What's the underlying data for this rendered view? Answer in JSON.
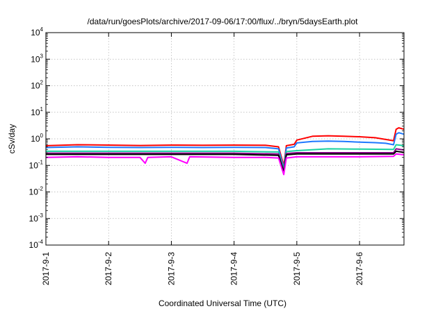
{
  "chart_data": {
    "type": "line",
    "title": "/data/run/goesPlots/archive/2017-09-06/17:00/flux/../bryn/5daysEarth.plot",
    "xlabel": "Coordinated Universal Time (UTC)",
    "ylabel": "cSv/day",
    "yscale": "log",
    "ylim": [
      0.0001,
      10000
    ],
    "yticks": [
      {
        "base": "10",
        "exp": "-4"
      },
      {
        "base": "10",
        "exp": "-3"
      },
      {
        "base": "10",
        "exp": "-2"
      },
      {
        "base": "10",
        "exp": "-1"
      },
      {
        "base": "10",
        "exp": "0"
      },
      {
        "base": "10",
        "exp": "1"
      },
      {
        "base": "10",
        "exp": "2"
      },
      {
        "base": "10",
        "exp": "3"
      },
      {
        "base": "10",
        "exp": "4"
      }
    ],
    "xlim": [
      "2017-09-01T00:00",
      "2017-09-06T17:00"
    ],
    "xticks": [
      "2017-9-1",
      "2017-9-2",
      "2017-9-3",
      "2017-9-4",
      "2017-9-5",
      "2017-9-6"
    ],
    "grid": true,
    "legend": "none",
    "series": [
      {
        "color": "#ff0000",
        "points": [
          [
            "2017-09-01T00:00",
            0.55
          ],
          [
            "2017-09-01T12:00",
            0.6
          ],
          [
            "2017-09-02T00:00",
            0.58
          ],
          [
            "2017-09-02T12:00",
            0.56
          ],
          [
            "2017-09-03T00:00",
            0.58
          ],
          [
            "2017-09-03T12:00",
            0.57
          ],
          [
            "2017-09-04T00:00",
            0.58
          ],
          [
            "2017-09-04T12:00",
            0.57
          ],
          [
            "2017-09-04T17:00",
            0.5
          ],
          [
            "2017-09-04T19:00",
            0.1
          ],
          [
            "2017-09-04T20:00",
            0.55
          ],
          [
            "2017-09-04T23:00",
            0.62
          ],
          [
            "2017-09-05T00:00",
            0.9
          ],
          [
            "2017-09-05T06:00",
            1.25
          ],
          [
            "2017-09-05T12:00",
            1.3
          ],
          [
            "2017-09-05T18:00",
            1.25
          ],
          [
            "2017-09-06T00:00",
            1.2
          ],
          [
            "2017-09-06T06:00",
            1.1
          ],
          [
            "2017-09-06T10:00",
            0.95
          ],
          [
            "2017-09-06T13:00",
            0.85
          ],
          [
            "2017-09-06T14:00",
            2.3
          ],
          [
            "2017-09-06T15:00",
            2.6
          ],
          [
            "2017-09-06T17:00",
            2.3
          ]
        ]
      },
      {
        "color": "#1e78ff",
        "points": [
          [
            "2017-09-01T00:00",
            0.47
          ],
          [
            "2017-09-01T12:00",
            0.5
          ],
          [
            "2017-09-02T00:00",
            0.48
          ],
          [
            "2017-09-02T12:00",
            0.47
          ],
          [
            "2017-09-03T00:00",
            0.48
          ],
          [
            "2017-09-03T12:00",
            0.47
          ],
          [
            "2017-09-04T00:00",
            0.48
          ],
          [
            "2017-09-04T12:00",
            0.47
          ],
          [
            "2017-09-04T17:00",
            0.42
          ],
          [
            "2017-09-04T19:00",
            0.08
          ],
          [
            "2017-09-04T20:00",
            0.45
          ],
          [
            "2017-09-04T23:00",
            0.5
          ],
          [
            "2017-09-05T00:00",
            0.7
          ],
          [
            "2017-09-05T06:00",
            0.8
          ],
          [
            "2017-09-05T12:00",
            0.82
          ],
          [
            "2017-09-05T18:00",
            0.8
          ],
          [
            "2017-09-06T00:00",
            0.75
          ],
          [
            "2017-09-06T06:00",
            0.72
          ],
          [
            "2017-09-06T10:00",
            0.68
          ],
          [
            "2017-09-06T13:00",
            0.6
          ],
          [
            "2017-09-06T14:00",
            1.5
          ],
          [
            "2017-09-06T15:00",
            1.7
          ],
          [
            "2017-09-06T17:00",
            1.5
          ]
        ]
      },
      {
        "color": "#19d2a0",
        "points": [
          [
            "2017-09-01T00:00",
            0.34
          ],
          [
            "2017-09-02T00:00",
            0.34
          ],
          [
            "2017-09-03T00:00",
            0.34
          ],
          [
            "2017-09-04T00:00",
            0.34
          ],
          [
            "2017-09-04T17:00",
            0.32
          ],
          [
            "2017-09-04T19:00",
            0.07
          ],
          [
            "2017-09-04T20:00",
            0.33
          ],
          [
            "2017-09-05T00:00",
            0.36
          ],
          [
            "2017-09-05T12:00",
            0.42
          ],
          [
            "2017-09-06T00:00",
            0.41
          ],
          [
            "2017-09-06T13:00",
            0.4
          ],
          [
            "2017-09-06T14:00",
            0.6
          ],
          [
            "2017-09-06T17:00",
            0.55
          ]
        ]
      },
      {
        "color": "#8c008c",
        "points": [
          [
            "2017-09-01T00:00",
            0.29
          ],
          [
            "2017-09-02T00:00",
            0.29
          ],
          [
            "2017-09-03T00:00",
            0.29
          ],
          [
            "2017-09-04T00:00",
            0.29
          ],
          [
            "2017-09-04T17:00",
            0.27
          ],
          [
            "2017-09-04T19:00",
            0.06
          ],
          [
            "2017-09-04T20:00",
            0.28
          ],
          [
            "2017-09-05T00:00",
            0.3
          ],
          [
            "2017-09-06T00:00",
            0.3
          ],
          [
            "2017-09-06T13:00",
            0.3
          ],
          [
            "2017-09-06T14:00",
            0.42
          ],
          [
            "2017-09-06T17:00",
            0.38
          ]
        ]
      },
      {
        "color": "#000000",
        "points": [
          [
            "2017-09-01T00:00",
            0.26
          ],
          [
            "2017-09-02T00:00",
            0.26
          ],
          [
            "2017-09-03T00:00",
            0.26
          ],
          [
            "2017-09-04T00:00",
            0.26
          ],
          [
            "2017-09-04T17:00",
            0.24
          ],
          [
            "2017-09-04T19:00",
            0.055
          ],
          [
            "2017-09-04T20:00",
            0.25
          ],
          [
            "2017-09-05T00:00",
            0.27
          ],
          [
            "2017-09-06T00:00",
            0.27
          ],
          [
            "2017-09-06T13:00",
            0.27
          ],
          [
            "2017-09-06T14:00",
            0.34
          ],
          [
            "2017-09-06T17:00",
            0.31
          ]
        ]
      },
      {
        "color": "#ff00ff",
        "points": [
          [
            "2017-09-01T00:00",
            0.2
          ],
          [
            "2017-09-01T12:00",
            0.21
          ],
          [
            "2017-09-02T00:00",
            0.2
          ],
          [
            "2017-09-02T12:00",
            0.2
          ],
          [
            "2017-09-02T14:00",
            0.12
          ],
          [
            "2017-09-02T15:00",
            0.2
          ],
          [
            "2017-09-03T00:00",
            0.21
          ],
          [
            "2017-09-03T06:00",
            0.12
          ],
          [
            "2017-09-03T07:00",
            0.21
          ],
          [
            "2017-09-04T00:00",
            0.2
          ],
          [
            "2017-09-04T12:00",
            0.2
          ],
          [
            "2017-09-04T17:00",
            0.19
          ],
          [
            "2017-09-04T19:00",
            0.045
          ],
          [
            "2017-09-04T20:00",
            0.19
          ],
          [
            "2017-09-05T00:00",
            0.21
          ],
          [
            "2017-09-06T00:00",
            0.21
          ],
          [
            "2017-09-06T13:00",
            0.22
          ],
          [
            "2017-09-06T14:00",
            0.27
          ],
          [
            "2017-09-06T17:00",
            0.25
          ]
        ]
      }
    ]
  }
}
